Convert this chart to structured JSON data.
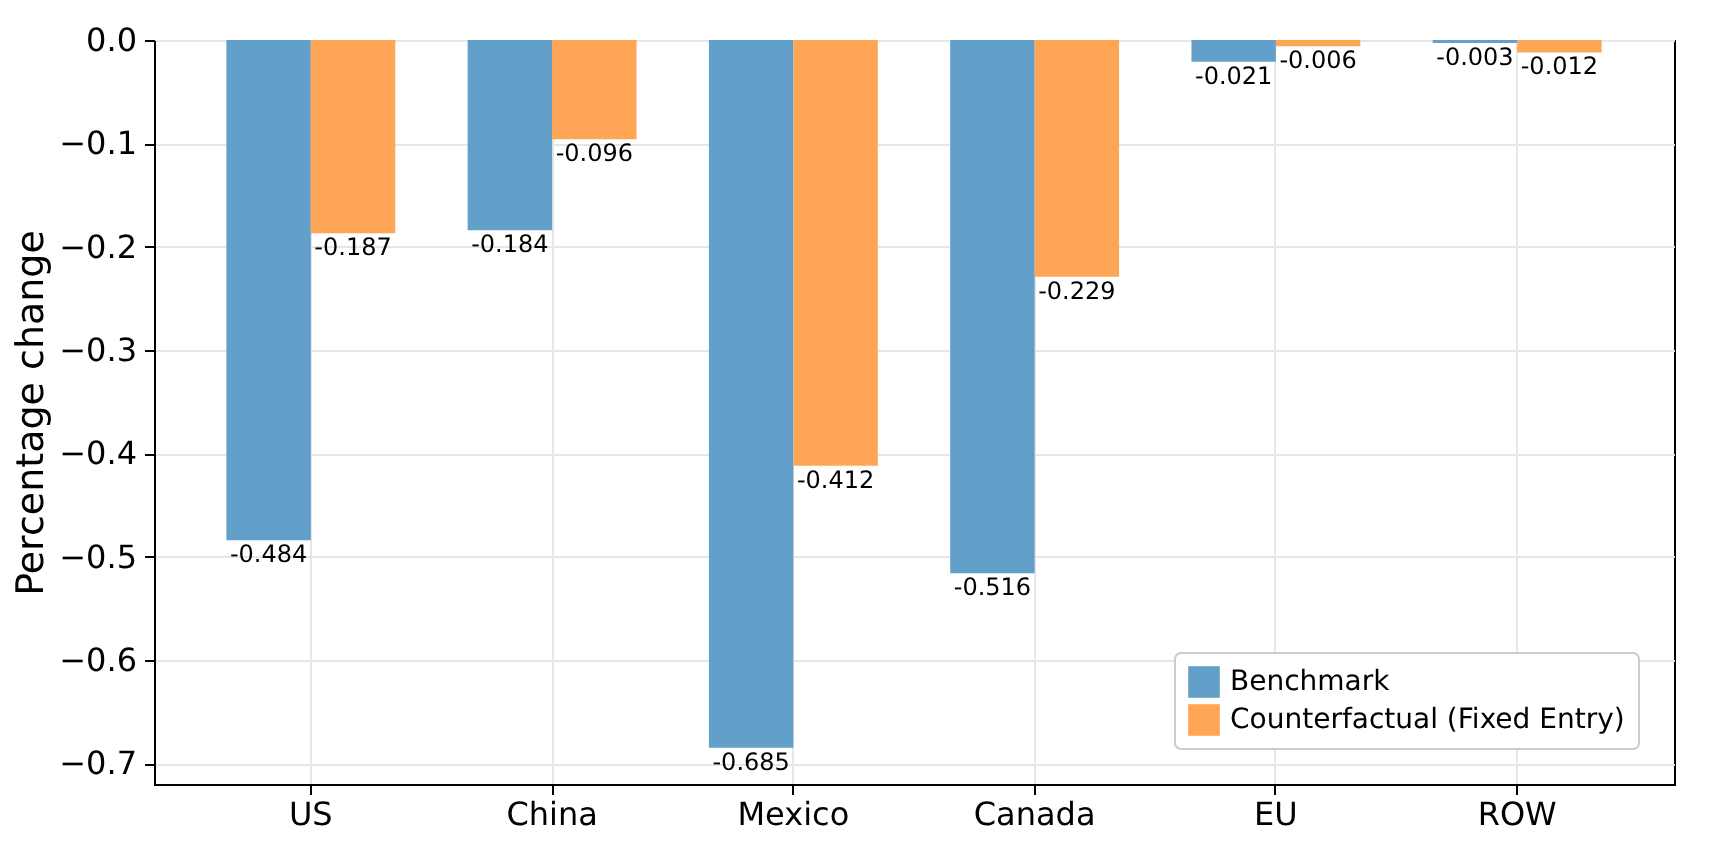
{
  "chart_data": {
    "type": "bar",
    "ylabel": "Percentage change",
    "categories": [
      "US",
      "China",
      "Mexico",
      "Canada",
      "EU",
      "ROW"
    ],
    "series": [
      {
        "name": "Benchmark",
        "color": "#62a0ca",
        "values": [
          -0.484,
          -0.184,
          -0.685,
          -0.516,
          -0.021,
          -0.003
        ]
      },
      {
        "name": "Counterfactual (Fixed Entry)",
        "color": "#ffa556",
        "values": [
          -0.187,
          -0.096,
          -0.412,
          -0.229,
          -0.006,
          -0.012
        ]
      }
    ],
    "ylim": [
      -0.72,
      0
    ],
    "yticks": [
      {
        "value": 0,
        "label": "0.0"
      },
      {
        "value": -0.1,
        "label": "−0.1"
      },
      {
        "value": -0.2,
        "label": "−0.2"
      },
      {
        "value": -0.3,
        "label": "−0.3"
      },
      {
        "value": -0.4,
        "label": "−0.4"
      },
      {
        "value": -0.5,
        "label": "−0.5"
      },
      {
        "value": -0.6,
        "label": "−0.6"
      },
      {
        "value": -0.7,
        "label": "−0.7"
      }
    ],
    "grid": true,
    "legend": "bottom right",
    "data_labels": true
  }
}
